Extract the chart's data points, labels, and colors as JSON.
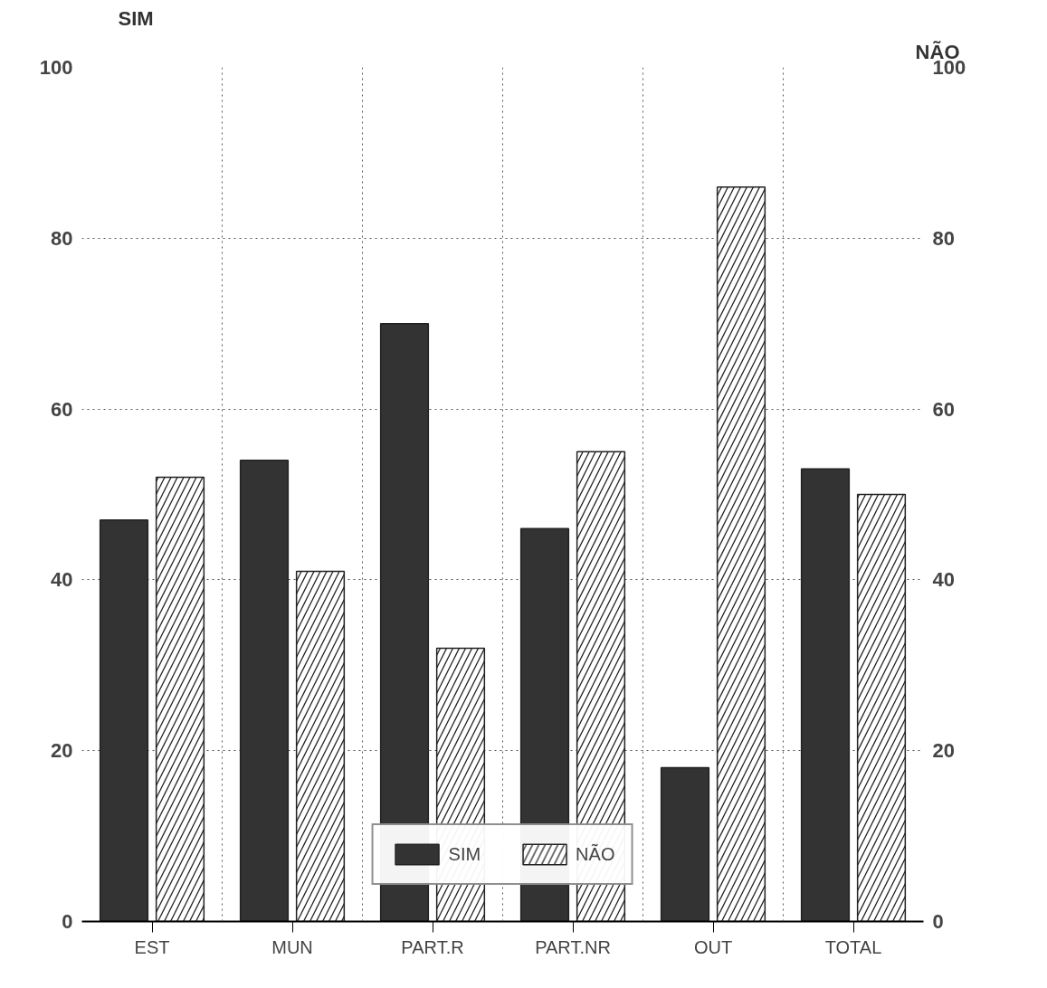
{
  "chart_data": {
    "type": "bar",
    "categories": [
      "EST",
      "MUN",
      "PART.R",
      "PART.NR",
      "OUT",
      "TOTAL"
    ],
    "ylabel": "SIM",
    "y2label": "NÃO",
    "series": [
      {
        "name": "SIM",
        "color": "#333333",
        "values": [
          47,
          54,
          70,
          46,
          18,
          53
        ]
      },
      {
        "name": "NÃO",
        "color": "#ffffff",
        "axis": "y2",
        "values": [
          52,
          41,
          32,
          55,
          86,
          50
        ]
      }
    ],
    "ylim": [
      0,
      100
    ],
    "yticks": [
      0,
      20,
      40,
      60,
      80,
      100
    ],
    "y2lim": [
      0,
      100
    ],
    "y2ticks": [
      0,
      20,
      40,
      60,
      80,
      100
    ],
    "grid": true,
    "legend": "bottom"
  }
}
